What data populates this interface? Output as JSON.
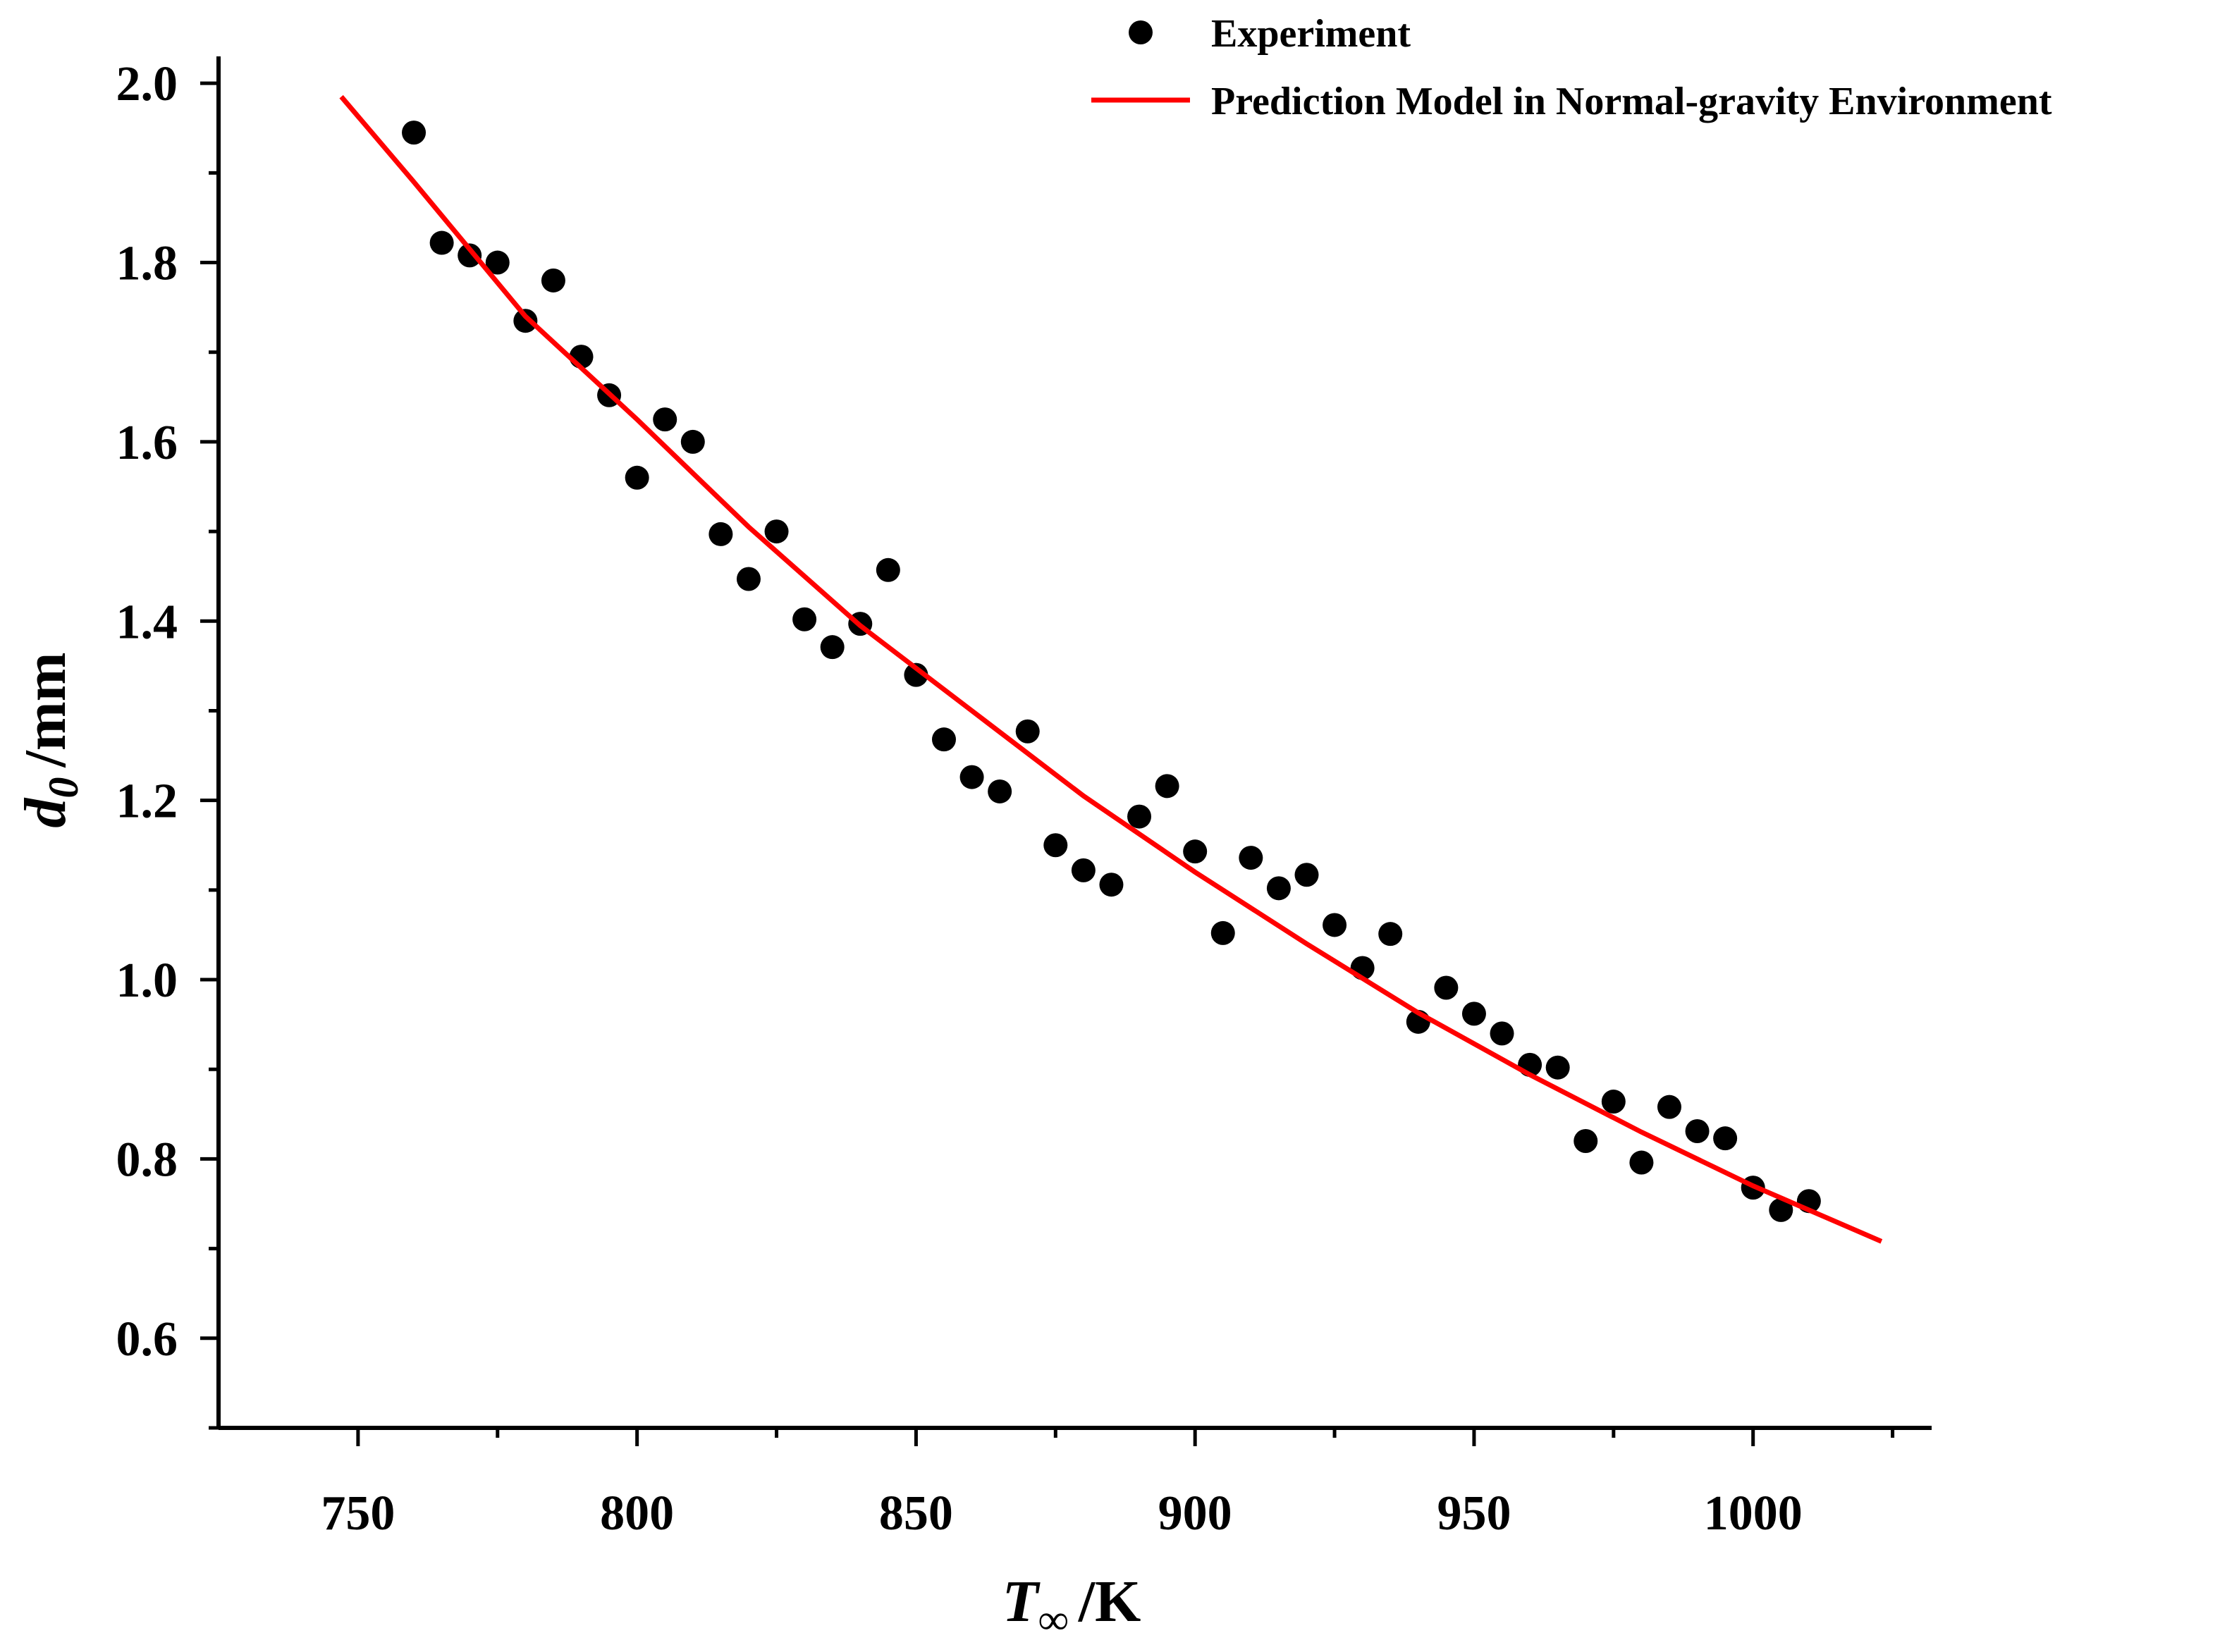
{
  "chart_data": {
    "type": "scatter",
    "title": "",
    "xlabel": {
      "main": "T",
      "sub": "∞",
      "unit": "/K"
    },
    "ylabel": {
      "main": "d",
      "sub": "0",
      "unit": "/mm"
    },
    "xlim": [
      725,
      1032
    ],
    "ylim": [
      0.5,
      2.03
    ],
    "xticks": [
      750,
      800,
      850,
      900,
      950,
      1000
    ],
    "xtick_labels": [
      "750",
      "800",
      "850",
      "900",
      "950",
      "1000"
    ],
    "yticks": [
      0.6,
      0.8,
      1.0,
      1.2,
      1.4,
      1.6,
      1.8,
      2.0
    ],
    "ytick_labels": [
      "0.6",
      "0.8",
      "1.0",
      "1.2",
      "1.4",
      "1.6",
      "1.8",
      "2.0"
    ],
    "legend_position": "top-right",
    "colors": {
      "experiment": "#000000",
      "model": "#ff0000",
      "axis": "#000000"
    },
    "series": [
      {
        "name": "Experiment",
        "kind": "scatter",
        "x": [
          760,
          765,
          770,
          775,
          780,
          785,
          790,
          795,
          800,
          805,
          810,
          815,
          820,
          825,
          830,
          835,
          840,
          845,
          850,
          855,
          860,
          865,
          870,
          875,
          880,
          885,
          890,
          895,
          900,
          905,
          910,
          915,
          920,
          925,
          930,
          935,
          940,
          945,
          950,
          955,
          960,
          965,
          970,
          975,
          980,
          985,
          990,
          995,
          1000,
          1005,
          1010
        ],
        "y": [
          1.945,
          1.822,
          1.808,
          1.8,
          1.735,
          1.78,
          1.695,
          1.652,
          1.56,
          1.625,
          1.6,
          1.497,
          1.447,
          1.5,
          1.402,
          1.371,
          1.397,
          1.457,
          1.34,
          1.268,
          1.226,
          1.21,
          1.277,
          1.15,
          1.122,
          1.106,
          1.182,
          1.216,
          1.143,
          1.052,
          1.136,
          1.102,
          1.117,
          1.061,
          1.013,
          1.051,
          0.953,
          0.991,
          0.962,
          0.94,
          0.905,
          0.902,
          0.82,
          0.864,
          0.796,
          0.858,
          0.831,
          0.823,
          0.768,
          0.743,
          0.753
        ]
      },
      {
        "name": "Prediction Model in Normal-gravity Environment",
        "kind": "line",
        "x": [
          747,
          760,
          780,
          800,
          820,
          840,
          860,
          880,
          900,
          920,
          940,
          960,
          980,
          1000,
          1023
        ],
        "y": [
          1.985,
          1.89,
          1.74,
          1.625,
          1.505,
          1.395,
          1.3,
          1.205,
          1.12,
          1.04,
          0.963,
          0.894,
          0.83,
          0.77,
          0.708
        ]
      }
    ]
  }
}
